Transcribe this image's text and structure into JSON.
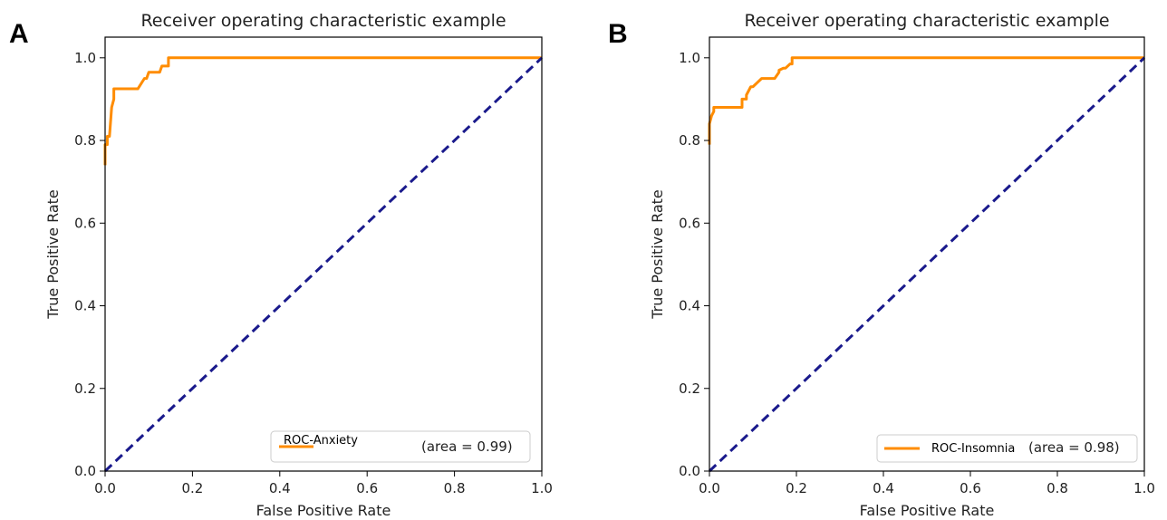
{
  "chart_data": [
    {
      "panel": "A",
      "type": "line",
      "title": "Receiver operating characteristic example",
      "xlabel": "False Positive Rate",
      "ylabel": "True Positive Rate",
      "xlim": [
        0.0,
        1.0
      ],
      "ylim": [
        0.0,
        1.05
      ],
      "xticks": [
        "0.0",
        "0.2",
        "0.4",
        "0.6",
        "0.8",
        "1.0"
      ],
      "yticks": [
        "0.0",
        "0.2",
        "0.4",
        "0.6",
        "0.8",
        "1.0"
      ],
      "legend_position": "lower-right",
      "grid": false,
      "series": [
        {
          "name": "ROC-Anxiety",
          "label_suffix": "(area = 0.99)",
          "color": "#ff8c00",
          "style": "solid",
          "x": [
            0.0,
            0.0,
            0.005,
            0.005,
            0.01,
            0.015,
            0.015,
            0.02,
            0.02,
            0.075,
            0.09,
            0.095,
            0.1,
            0.125,
            0.13,
            0.145,
            0.145,
            1.0
          ],
          "y": [
            0.74,
            0.79,
            0.79,
            0.81,
            0.81,
            0.88,
            0.88,
            0.9,
            0.925,
            0.925,
            0.95,
            0.95,
            0.965,
            0.965,
            0.98,
            0.98,
            1.0,
            1.0
          ]
        },
        {
          "name": "",
          "color": "#1a1a8c",
          "style": "dashed",
          "x": [
            0.0,
            1.0
          ],
          "y": [
            0.0,
            1.0
          ]
        }
      ]
    },
    {
      "panel": "B",
      "type": "line",
      "title": "Receiver operating characteristic example",
      "xlabel": "False Positive Rate",
      "ylabel": "True Positive Rate",
      "xlim": [
        0.0,
        1.0
      ],
      "ylim": [
        0.0,
        1.05
      ],
      "xticks": [
        "0.0",
        "0.2",
        "0.4",
        "0.6",
        "0.8",
        "1.0"
      ],
      "yticks": [
        "0.0",
        "0.2",
        "0.4",
        "0.6",
        "0.8",
        "1.0"
      ],
      "legend_position": "lower-right",
      "grid": false,
      "series": [
        {
          "name": "ROC-Insomnia",
          "label_suffix": "(area = 0.98)",
          "color": "#ff8c00",
          "style": "solid",
          "x": [
            0.0,
            0.0,
            0.005,
            0.01,
            0.01,
            0.02,
            0.075,
            0.075,
            0.08,
            0.085,
            0.085,
            0.095,
            0.1,
            0.11,
            0.12,
            0.13,
            0.15,
            0.16,
            0.16,
            0.17,
            0.175,
            0.185,
            0.19,
            0.19,
            1.0
          ],
          "y": [
            0.79,
            0.84,
            0.86,
            0.87,
            0.88,
            0.88,
            0.88,
            0.9,
            0.9,
            0.9,
            0.91,
            0.93,
            0.93,
            0.94,
            0.95,
            0.95,
            0.95,
            0.965,
            0.97,
            0.975,
            0.975,
            0.985,
            0.985,
            1.0,
            1.0
          ]
        },
        {
          "name": "",
          "color": "#1a1a8c",
          "style": "dashed",
          "x": [
            0.0,
            1.0
          ],
          "y": [
            0.0,
            1.0
          ]
        }
      ]
    }
  ]
}
